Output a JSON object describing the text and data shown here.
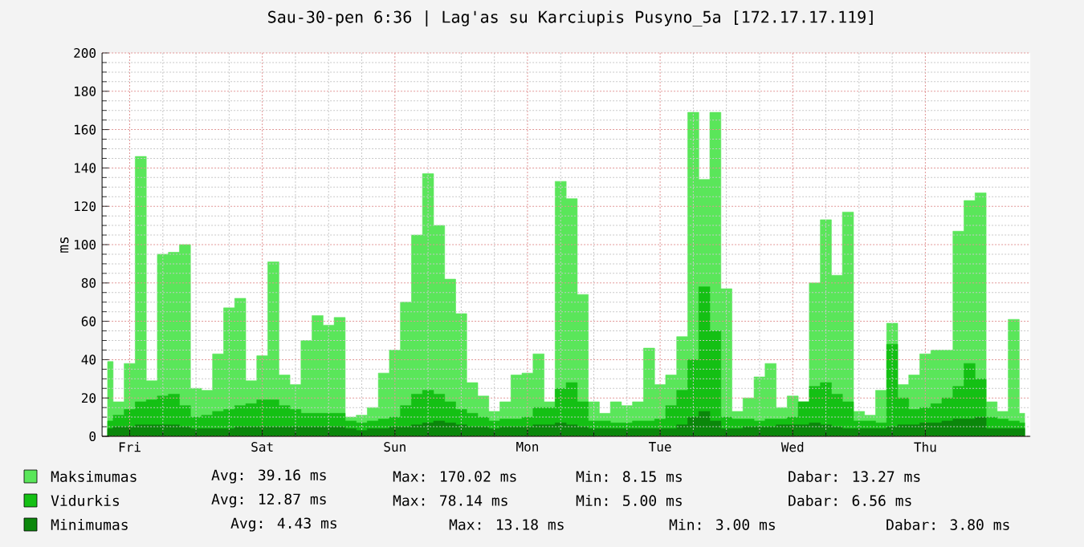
{
  "chart_data": {
    "type": "area",
    "title": "Sau-30-pen 6:36 | Lag'as su Karciupis Pusyno_5a [172.17.17.119]",
    "ylabel": "ms",
    "categories": [
      null,
      null,
      "Fri",
      null,
      null,
      null,
      null,
      null,
      null,
      null,
      null,
      null,
      null,
      null,
      "Sat",
      null,
      null,
      null,
      null,
      null,
      null,
      null,
      null,
      null,
      null,
      null,
      "Sun",
      null,
      null,
      null,
      null,
      null,
      null,
      null,
      null,
      null,
      null,
      null,
      "Mon",
      null,
      null,
      null,
      null,
      null,
      null,
      null,
      null,
      null,
      null,
      null,
      "Tue",
      null,
      null,
      null,
      null,
      null,
      null,
      null,
      null,
      null,
      null,
      null,
      "Wed",
      null,
      null,
      null,
      null,
      null,
      null,
      null,
      null,
      null,
      null,
      null,
      "Thu",
      null,
      null,
      null,
      null,
      null,
      null,
      null,
      null,
      null
    ],
    "ylim": [
      0,
      200
    ],
    "yticks": [
      0,
      20,
      40,
      60,
      80,
      100,
      120,
      140,
      160,
      180,
      200
    ],
    "grid": true,
    "legend": "bottom",
    "series": [
      {
        "name": "Maksimumas",
        "color": "#5ae65a",
        "values": [
          39,
          18,
          38,
          146,
          29,
          95,
          96,
          100,
          25,
          24,
          43,
          67,
          72,
          29,
          42,
          91,
          32,
          27,
          50,
          63,
          58,
          62,
          10,
          11,
          15,
          33,
          45,
          70,
          105,
          137,
          110,
          82,
          64,
          28,
          21,
          13,
          18,
          32,
          33,
          43,
          18,
          133,
          124,
          74,
          18,
          12,
          18,
          16,
          18,
          46,
          27,
          32,
          52,
          169,
          134,
          169,
          77,
          13,
          20,
          31,
          38,
          15,
          21,
          18,
          80,
          113,
          84,
          117,
          13,
          11,
          24,
          59,
          27,
          32,
          43,
          45,
          45,
          107,
          123,
          127,
          18,
          13,
          61,
          12
        ]
      },
      {
        "name": "Vidurkis",
        "color": "#14c014",
        "values": [
          8,
          11,
          14,
          18,
          19,
          21,
          22,
          16,
          10,
          11,
          13,
          14,
          16,
          17,
          19,
          19,
          16,
          14,
          12,
          12,
          12,
          12,
          8,
          7,
          8,
          9,
          10,
          16,
          22,
          24,
          22,
          18,
          14,
          12,
          10,
          8,
          9,
          9,
          10,
          15,
          15,
          25,
          28,
          18,
          8,
          8,
          7,
          7,
          8,
          8,
          9,
          16,
          24,
          40,
          78,
          55,
          10,
          9,
          9,
          8,
          9,
          9,
          10,
          18,
          26,
          28,
          22,
          18,
          8,
          8,
          7,
          48,
          20,
          14,
          15,
          17,
          20,
          26,
          38,
          30,
          10,
          9,
          8,
          7
        ]
      },
      {
        "name": "Minimumas",
        "color": "#0b870b",
        "values": [
          4,
          5,
          5,
          6,
          6,
          6,
          6,
          5,
          4,
          4,
          4,
          4,
          5,
          5,
          5,
          5,
          5,
          5,
          5,
          5,
          5,
          5,
          4,
          3,
          4,
          4,
          5,
          5,
          6,
          7,
          8,
          7,
          6,
          5,
          5,
          4,
          5,
          5,
          5,
          6,
          6,
          7,
          6,
          5,
          4,
          4,
          4,
          4,
          4,
          4,
          4,
          4,
          6,
          10,
          13,
          8,
          4,
          4,
          5,
          5,
          5,
          6,
          6,
          6,
          7,
          6,
          5,
          4,
          4,
          4,
          4,
          5,
          6,
          6,
          7,
          7,
          8,
          9,
          9,
          10,
          4,
          4,
          4,
          4
        ]
      }
    ],
    "annotations": [
      "Avg: 39.16 ms",
      "Max: 170.02 ms",
      "Min: 8.15 ms",
      "Dabar: 13.27 ms",
      "Avg: 12.87 ms",
      "Max: 78.14 ms",
      "Min: 5.00 ms",
      "Dabar: 6.56 ms",
      "Avg: 4.43 ms",
      "Max: 13.18 ms",
      "Min: 3.00 ms",
      "Dabar: 3.80 ms"
    ]
  }
}
